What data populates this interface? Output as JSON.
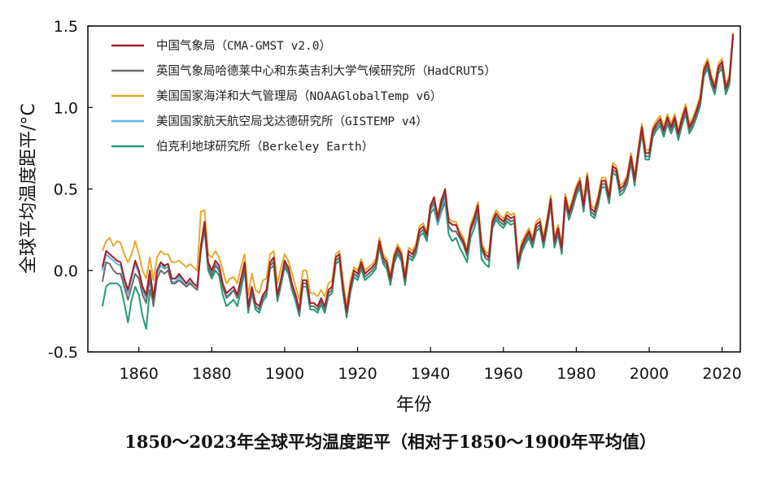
{
  "caption": "1850～2023年全球平均温度距平（相对于1850～1900年平均值）",
  "chart_data": {
    "type": "line",
    "title": "",
    "xlabel": "年份",
    "ylabel": "全球平均温度距平/°C",
    "xlim": [
      1846,
      2025
    ],
    "ylim": [
      -0.5,
      1.5
    ],
    "x_ticks": [
      "1860",
      "1880",
      "1900",
      "1920",
      "1940",
      "1960",
      "1980",
      "2000",
      "2020"
    ],
    "y_ticks": [
      "1.5",
      "1.0",
      "0.5",
      "0.0",
      "-0.5"
    ],
    "legend_position": "top-left",
    "grid": false,
    "x": [
      1850,
      1851,
      1852,
      1853,
      1854,
      1855,
      1856,
      1857,
      1858,
      1859,
      1860,
      1861,
      1862,
      1863,
      1864,
      1865,
      1866,
      1867,
      1868,
      1869,
      1870,
      1871,
      1872,
      1873,
      1874,
      1875,
      1876,
      1877,
      1878,
      1879,
      1880,
      1881,
      1882,
      1883,
      1884,
      1885,
      1886,
      1887,
      1888,
      1889,
      1890,
      1891,
      1892,
      1893,
      1894,
      1895,
      1896,
      1897,
      1898,
      1899,
      1900,
      1901,
      1902,
      1903,
      1904,
      1905,
      1906,
      1907,
      1908,
      1909,
      1910,
      1911,
      1912,
      1913,
      1914,
      1915,
      1916,
      1917,
      1918,
      1919,
      1920,
      1921,
      1922,
      1923,
      1924,
      1925,
      1926,
      1927,
      1928,
      1929,
      1930,
      1931,
      1932,
      1933,
      1934,
      1935,
      1936,
      1937,
      1938,
      1939,
      1940,
      1941,
      1942,
      1943,
      1944,
      1945,
      1946,
      1947,
      1948,
      1949,
      1950,
      1951,
      1952,
      1953,
      1954,
      1955,
      1956,
      1957,
      1958,
      1959,
      1960,
      1961,
      1962,
      1963,
      1964,
      1965,
      1966,
      1967,
      1968,
      1969,
      1970,
      1971,
      1972,
      1973,
      1974,
      1975,
      1976,
      1977,
      1978,
      1979,
      1980,
      1981,
      1982,
      1983,
      1984,
      1985,
      1986,
      1987,
      1988,
      1989,
      1990,
      1991,
      1992,
      1993,
      1994,
      1995,
      1996,
      1997,
      1998,
      1999,
      2000,
      2001,
      2002,
      2003,
      2004,
      2005,
      2006,
      2007,
      2008,
      2009,
      2010,
      2011,
      2012,
      2013,
      2014,
      2015,
      2016,
      2017,
      2018,
      2019,
      2020,
      2021,
      2022,
      2023
    ],
    "series": [
      {
        "name": "中国气象局（CMA-GMST v2.0）",
        "color": "#a31f24",
        "values": [
          0.02,
          0.12,
          0.1,
          0.08,
          0.06,
          0.05,
          -0.05,
          -0.12,
          -0.03,
          0.06,
          0.0,
          -0.1,
          -0.15,
          0.0,
          -0.17,
          0.0,
          0.05,
          0.03,
          0.04,
          -0.05,
          -0.05,
          -0.02,
          -0.05,
          -0.08,
          -0.05,
          -0.08,
          -0.1,
          0.15,
          0.3,
          0.05,
          0.0,
          0.06,
          0.03,
          -0.08,
          -0.14,
          -0.12,
          -0.1,
          -0.15,
          -0.05,
          0.05,
          -0.22,
          -0.1,
          -0.2,
          -0.22,
          -0.15,
          -0.12,
          0.05,
          0.08,
          -0.15,
          -0.05,
          0.06,
          0.02,
          -0.08,
          -0.15,
          -0.24,
          -0.06,
          -0.06,
          -0.2,
          -0.2,
          -0.22,
          -0.17,
          -0.22,
          -0.12,
          -0.1,
          0.08,
          0.1,
          -0.1,
          -0.25,
          -0.1,
          0.0,
          -0.02,
          0.05,
          -0.02,
          0.0,
          0.02,
          0.05,
          0.18,
          0.08,
          0.05,
          -0.05,
          0.08,
          0.14,
          0.1,
          -0.05,
          0.12,
          0.1,
          0.14,
          0.25,
          0.27,
          0.22,
          0.4,
          0.45,
          0.32,
          0.43,
          0.5,
          0.3,
          0.28,
          0.28,
          0.22,
          0.18,
          0.11,
          0.26,
          0.32,
          0.4,
          0.15,
          0.1,
          0.08,
          0.3,
          0.35,
          0.32,
          0.3,
          0.34,
          0.32,
          0.33,
          0.05,
          0.15,
          0.2,
          0.24,
          0.18,
          0.28,
          0.3,
          0.18,
          0.3,
          0.44,
          0.18,
          0.26,
          0.14,
          0.45,
          0.35,
          0.42,
          0.5,
          0.55,
          0.4,
          0.58,
          0.38,
          0.36,
          0.44,
          0.55,
          0.55,
          0.45,
          0.64,
          0.62,
          0.5,
          0.52,
          0.57,
          0.7,
          0.56,
          0.73,
          0.88,
          0.72,
          0.72,
          0.86,
          0.9,
          0.93,
          0.86,
          0.94,
          0.88,
          0.94,
          0.84,
          0.93,
          1.0,
          0.88,
          0.92,
          0.98,
          1.05,
          1.23,
          1.28,
          1.18,
          1.12,
          1.25,
          1.28,
          1.12,
          1.18,
          1.45
        ]
      },
      {
        "name": "英国气象局哈德莱中心和东英吉利大学气候研究所（HadCRUT5）",
        "color": "#6b6b6b",
        "values": [
          -0.07,
          0.05,
          0.04,
          0.0,
          -0.02,
          -0.02,
          -0.1,
          -0.18,
          -0.1,
          -0.02,
          -0.05,
          -0.15,
          -0.2,
          -0.05,
          -0.22,
          -0.05,
          0.0,
          -0.02,
          0.0,
          -0.08,
          -0.08,
          -0.06,
          -0.08,
          -0.1,
          -0.08,
          -0.1,
          -0.12,
          0.12,
          0.27,
          0.02,
          -0.03,
          0.03,
          0.0,
          -0.1,
          -0.17,
          -0.15,
          -0.12,
          -0.17,
          -0.08,
          0.02,
          -0.24,
          -0.12,
          -0.22,
          -0.24,
          -0.17,
          -0.14,
          0.03,
          0.05,
          -0.17,
          -0.07,
          0.04,
          0.0,
          -0.1,
          -0.17,
          -0.26,
          -0.08,
          -0.08,
          -0.22,
          -0.22,
          -0.24,
          -0.19,
          -0.24,
          -0.14,
          -0.12,
          0.06,
          0.08,
          -0.12,
          -0.27,
          -0.12,
          -0.02,
          -0.04,
          0.03,
          -0.04,
          -0.02,
          0.0,
          0.03,
          0.16,
          0.06,
          0.03,
          -0.07,
          0.06,
          0.12,
          0.08,
          -0.07,
          0.1,
          0.08,
          0.12,
          0.23,
          0.25,
          0.2,
          0.38,
          0.42,
          0.3,
          0.4,
          0.47,
          0.27,
          0.24,
          0.24,
          0.2,
          0.16,
          0.09,
          0.24,
          0.3,
          0.38,
          0.13,
          0.08,
          0.06,
          0.28,
          0.33,
          0.3,
          0.28,
          0.32,
          0.3,
          0.31,
          0.03,
          0.13,
          0.18,
          0.22,
          0.16,
          0.26,
          0.28,
          0.16,
          0.28,
          0.42,
          0.16,
          0.24,
          0.12,
          0.43,
          0.33,
          0.4,
          0.48,
          0.53,
          0.38,
          0.56,
          0.36,
          0.34,
          0.42,
          0.53,
          0.53,
          0.43,
          0.62,
          0.6,
          0.48,
          0.5,
          0.55,
          0.68,
          0.54,
          0.71,
          0.86,
          0.7,
          0.7,
          0.84,
          0.88,
          0.91,
          0.84,
          0.92,
          0.86,
          0.92,
          0.82,
          0.91,
          0.98,
          0.86,
          0.9,
          0.96,
          1.03,
          1.21,
          1.26,
          1.16,
          1.1,
          1.23,
          1.26,
          1.1,
          1.16,
          1.44
        ]
      },
      {
        "name": "美国国家海洋和大气管理局（NOAAGlobalTemp v6）",
        "color": "#e3ab2e",
        "values": [
          0.12,
          0.18,
          0.2,
          0.15,
          0.18,
          0.17,
          0.1,
          0.05,
          0.1,
          0.18,
          0.1,
          0.0,
          -0.05,
          0.08,
          -0.06,
          0.08,
          0.12,
          0.1,
          0.1,
          0.05,
          0.05,
          0.06,
          0.04,
          0.02,
          0.04,
          0.02,
          0.0,
          0.36,
          0.37,
          0.1,
          0.08,
          0.12,
          0.08,
          0.0,
          -0.08,
          -0.05,
          -0.04,
          -0.08,
          0.02,
          0.1,
          -0.15,
          -0.02,
          -0.12,
          -0.14,
          -0.06,
          -0.05,
          0.1,
          0.12,
          -0.08,
          0.02,
          0.1,
          0.06,
          -0.02,
          -0.1,
          -0.18,
          0.0,
          0.0,
          -0.14,
          -0.14,
          -0.16,
          -0.12,
          -0.16,
          -0.08,
          -0.06,
          0.1,
          0.12,
          -0.06,
          -0.22,
          -0.06,
          0.02,
          0.0,
          0.07,
          0.0,
          0.02,
          0.04,
          0.07,
          0.2,
          0.1,
          0.07,
          -0.03,
          0.1,
          0.16,
          0.12,
          -0.03,
          0.14,
          0.12,
          0.16,
          0.27,
          0.29,
          0.24,
          0.4,
          0.44,
          0.34,
          0.44,
          0.48,
          0.32,
          0.3,
          0.3,
          0.24,
          0.2,
          0.13,
          0.28,
          0.34,
          0.42,
          0.17,
          0.12,
          0.1,
          0.32,
          0.37,
          0.34,
          0.32,
          0.36,
          0.34,
          0.35,
          0.07,
          0.17,
          0.22,
          0.26,
          0.2,
          0.3,
          0.32,
          0.2,
          0.32,
          0.46,
          0.2,
          0.28,
          0.16,
          0.47,
          0.37,
          0.44,
          0.52,
          0.57,
          0.42,
          0.6,
          0.4,
          0.38,
          0.46,
          0.57,
          0.57,
          0.47,
          0.66,
          0.64,
          0.52,
          0.54,
          0.59,
          0.72,
          0.58,
          0.75,
          0.9,
          0.74,
          0.74,
          0.88,
          0.92,
          0.95,
          0.88,
          0.96,
          0.9,
          0.96,
          0.86,
          0.95,
          1.02,
          0.9,
          0.94,
          1.0,
          1.07,
          1.25,
          1.3,
          1.2,
          1.14,
          1.27,
          1.3,
          1.14,
          1.2,
          1.46
        ]
      },
      {
        "name": "美国国家航天航空局戈达德研究所（GISTEMP v4）",
        "color": "#5ab4e0",
        "values": [
          0.0,
          0.1,
          0.08,
          0.06,
          0.04,
          0.03,
          -0.07,
          -0.14,
          -0.05,
          0.04,
          -0.02,
          -0.12,
          -0.17,
          -0.02,
          -0.19,
          -0.02,
          0.03,
          0.01,
          0.02,
          -0.07,
          -0.07,
          -0.04,
          -0.07,
          -0.1,
          -0.07,
          -0.1,
          -0.12,
          0.13,
          0.28,
          0.03,
          -0.02,
          0.04,
          0.01,
          -0.1,
          -0.16,
          -0.14,
          -0.12,
          -0.17,
          -0.07,
          0.03,
          -0.24,
          -0.12,
          -0.22,
          -0.24,
          -0.17,
          -0.14,
          0.03,
          0.06,
          -0.17,
          -0.07,
          0.04,
          0.0,
          -0.1,
          -0.17,
          -0.26,
          -0.08,
          -0.08,
          -0.22,
          -0.22,
          -0.24,
          -0.19,
          -0.24,
          -0.14,
          -0.12,
          0.06,
          0.08,
          -0.12,
          -0.27,
          -0.12,
          -0.02,
          -0.04,
          0.03,
          -0.04,
          -0.02,
          0.0,
          0.03,
          0.16,
          0.06,
          0.03,
          -0.07,
          0.06,
          0.12,
          0.08,
          -0.07,
          0.1,
          0.08,
          0.12,
          0.23,
          0.25,
          0.2,
          0.37,
          0.41,
          0.28,
          0.38,
          0.45,
          0.26,
          0.24,
          0.24,
          0.2,
          0.16,
          0.09,
          0.24,
          0.3,
          0.38,
          0.13,
          0.08,
          0.06,
          0.28,
          0.33,
          0.3,
          0.28,
          0.32,
          0.3,
          0.31,
          0.03,
          0.13,
          0.18,
          0.22,
          0.16,
          0.26,
          0.28,
          0.16,
          0.28,
          0.42,
          0.16,
          0.24,
          0.12,
          0.43,
          0.33,
          0.4,
          0.48,
          0.53,
          0.38,
          0.56,
          0.36,
          0.34,
          0.42,
          0.53,
          0.53,
          0.43,
          0.62,
          0.6,
          0.48,
          0.5,
          0.55,
          0.68,
          0.54,
          0.71,
          0.86,
          0.7,
          0.7,
          0.84,
          0.88,
          0.91,
          0.84,
          0.92,
          0.86,
          0.92,
          0.82,
          0.91,
          0.98,
          0.86,
          0.9,
          0.96,
          1.03,
          1.21,
          1.26,
          1.16,
          1.1,
          1.23,
          1.26,
          1.1,
          1.16,
          1.44
        ]
      },
      {
        "name": "伯克利地球研究所（Berkeley Earth）",
        "color": "#1f9b7a",
        "values": [
          -0.22,
          -0.1,
          -0.08,
          -0.08,
          -0.08,
          -0.1,
          -0.2,
          -0.32,
          -0.18,
          -0.1,
          -0.15,
          -0.28,
          -0.36,
          -0.12,
          -0.2,
          0.0,
          0.05,
          0.02,
          0.02,
          -0.05,
          -0.05,
          -0.03,
          -0.05,
          -0.08,
          -0.05,
          -0.08,
          -0.1,
          0.12,
          0.25,
          0.0,
          -0.05,
          0.0,
          -0.03,
          -0.15,
          -0.22,
          -0.2,
          -0.18,
          -0.22,
          -0.12,
          0.0,
          -0.26,
          -0.14,
          -0.24,
          -0.26,
          -0.19,
          -0.16,
          0.01,
          0.03,
          -0.19,
          -0.09,
          0.02,
          -0.02,
          -0.12,
          -0.19,
          -0.28,
          -0.1,
          -0.1,
          -0.24,
          -0.24,
          -0.26,
          -0.21,
          -0.26,
          -0.16,
          -0.14,
          0.04,
          0.06,
          -0.14,
          -0.29,
          -0.14,
          -0.04,
          -0.06,
          0.01,
          -0.06,
          -0.04,
          -0.02,
          0.01,
          0.14,
          0.04,
          0.01,
          -0.09,
          0.04,
          0.1,
          0.06,
          -0.09,
          0.08,
          0.06,
          0.1,
          0.21,
          0.23,
          0.18,
          0.35,
          0.38,
          0.28,
          0.36,
          0.42,
          0.22,
          0.18,
          0.2,
          0.14,
          0.1,
          0.05,
          0.2,
          0.26,
          0.34,
          0.07,
          0.04,
          0.02,
          0.26,
          0.31,
          0.28,
          0.26,
          0.3,
          0.28,
          0.29,
          0.01,
          0.11,
          0.16,
          0.2,
          0.14,
          0.24,
          0.26,
          0.14,
          0.26,
          0.4,
          0.14,
          0.22,
          0.1,
          0.41,
          0.31,
          0.38,
          0.46,
          0.51,
          0.36,
          0.54,
          0.34,
          0.32,
          0.4,
          0.51,
          0.51,
          0.41,
          0.6,
          0.58,
          0.46,
          0.48,
          0.53,
          0.66,
          0.52,
          0.69,
          0.84,
          0.68,
          0.68,
          0.82,
          0.86,
          0.89,
          0.82,
          0.9,
          0.84,
          0.9,
          0.8,
          0.89,
          0.96,
          0.84,
          0.88,
          0.94,
          1.01,
          1.19,
          1.24,
          1.14,
          1.08,
          1.21,
          1.24,
          1.08,
          1.14,
          1.43
        ]
      }
    ]
  }
}
